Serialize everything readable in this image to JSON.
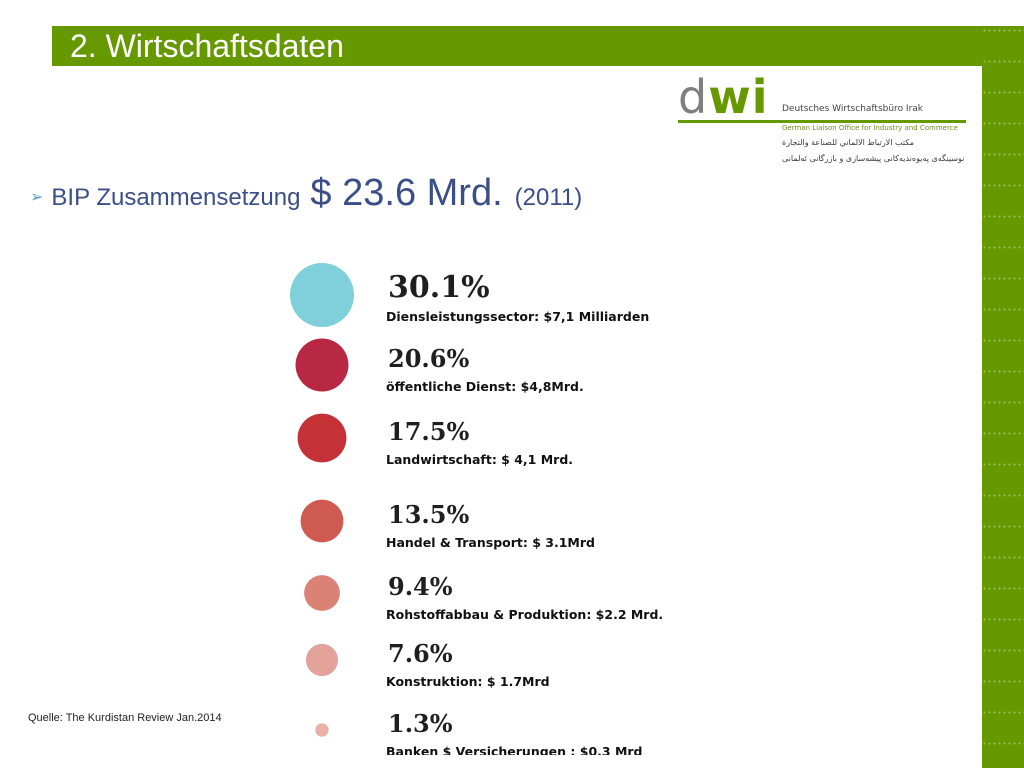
{
  "header": {
    "title": "2. Wirtschaftsdaten"
  },
  "logo": {
    "name": "dwi",
    "letter_d": "d",
    "letters_wi": "wi",
    "line1": "Deutsches Wirtschaftsbüro Irak",
    "line2": "German Liaison Office for Industry and Commerce",
    "line3": "مكتب الارتباط الالماني للصناعة والتجارة",
    "line4": "نوسینگەی پەیوەندیەکانی پیشەسازی و بازرگانی ئەلمانی"
  },
  "bullet": {
    "label": "BIP Zusammensetzung",
    "amount": "$ 23.6 Mrd.",
    "year": "(2011)"
  },
  "chart_data": {
    "type": "bubble",
    "unit": "%",
    "items": [
      {
        "value": 30.1,
        "label": "30.1%",
        "description": "Diensleistungssector: $7,1 Milliarden",
        "color": "#7fd0db"
      },
      {
        "value": 20.6,
        "label": "20.6%",
        "description": "öffentliche Dienst: $4,8Mrd.",
        "color": "#b92843"
      },
      {
        "value": 17.5,
        "label": "17.5%",
        "description": "Landwirtschaft: $ 4,1 Mrd.",
        "color": "#c43136"
      },
      {
        "value": 13.5,
        "label": "13.5%",
        "description": "Handel & Transport: $ 3.1Mrd",
        "color": "#cf5a50"
      },
      {
        "value": 9.4,
        "label": "9.4%",
        "description": "Rohstoffabbau & Produktion: $2.2 Mrd.",
        "color": "#da8276"
      },
      {
        "value": 7.6,
        "label": "7.6%",
        "description": "Konstruktion: $ 1.7Mrd",
        "color": "#e3a39a"
      },
      {
        "value": 1.3,
        "label": "1.3%",
        "description": "Banken $ Versicherungen : $0.3 Mrd",
        "color": "#e9b0a6"
      }
    ]
  },
  "footer": {
    "source": "Quelle: The Kurdistan Review Jan.2014"
  },
  "colors": {
    "accent": "#669900",
    "bullet_text": "#3b4e87"
  }
}
